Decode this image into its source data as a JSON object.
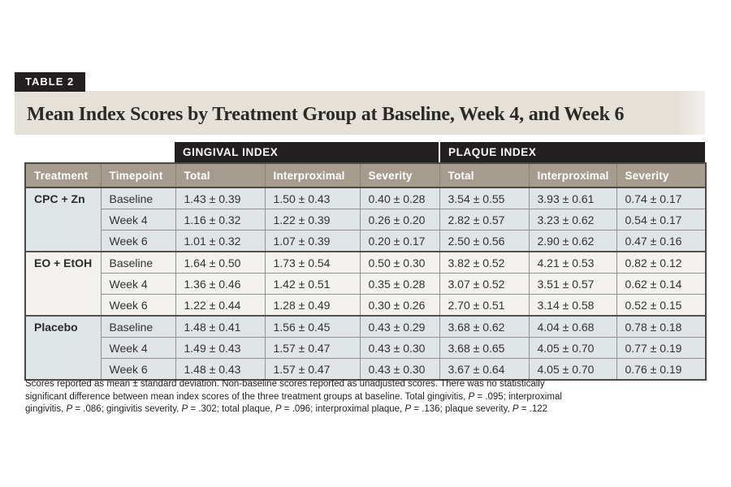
{
  "table_label": "TABLE 2",
  "title": "Mean Index Scores by Treatment Group at Baseline, Week 4, and Week 6",
  "colors": {
    "badge_black": "#231f20",
    "title_band_beige": "#e5e0d8",
    "header_taupe": "#a69c8e",
    "row_gray": "#dfe4e7",
    "row_light": "#f3f1ed",
    "border_dark": "#4c4847",
    "border_mid": "#919191"
  },
  "table": {
    "group_headers": [
      {
        "label": "GINGIVAL INDEX"
      },
      {
        "label": "PLAQUE INDEX"
      }
    ],
    "columns": [
      "Treatment",
      "Timepoint",
      "Total",
      "Interproximal",
      "Severity",
      "Total",
      "Interproximal",
      "Severity"
    ],
    "groups": [
      {
        "treatment": "CPC + Zn",
        "shade": "gray",
        "rows": [
          {
            "timepoint": "Baseline",
            "values": [
              "1.43 ± 0.39",
              "1.50 ± 0.43",
              "0.40 ± 0.28",
              "3.54 ± 0.55",
              "3.93 ± 0.61",
              "0.74 ± 0.17"
            ]
          },
          {
            "timepoint": "Week 4",
            "values": [
              "1.16 ± 0.32",
              "1.22 ± 0.39",
              "0.26 ± 0.20",
              "2.82 ± 0.57",
              "3.23 ± 0.62",
              "0.54 ± 0.17"
            ]
          },
          {
            "timepoint": "Week 6",
            "values": [
              "1.01 ± 0.32",
              "1.07 ± 0.39",
              "0.20 ± 0.17",
              "2.50 ± 0.56",
              "2.90 ± 0.62",
              "0.47 ± 0.16"
            ]
          }
        ]
      },
      {
        "treatment": "EO + EtOH",
        "shade": "light",
        "rows": [
          {
            "timepoint": "Baseline",
            "values": [
              "1.64 ± 0.50",
              "1.73 ± 0.54",
              "0.50 ± 0.30",
              "3.82 ± 0.52",
              "4.21 ± 0.53",
              "0.82 ± 0.12"
            ]
          },
          {
            "timepoint": "Week 4",
            "values": [
              "1.36 ± 0.46",
              "1.42 ± 0.51",
              "0.35 ± 0.28",
              "3.07 ± 0.52",
              "3.51 ± 0.57",
              "0.62 ± 0.14"
            ]
          },
          {
            "timepoint": "Week 6",
            "values": [
              "1.22 ± 0.44",
              "1.28 ± 0.49",
              "0.30 ± 0.26",
              "2.70 ± 0.51",
              "3.14 ± 0.58",
              "0.52 ± 0.15"
            ]
          }
        ]
      },
      {
        "treatment": "Placebo",
        "shade": "gray",
        "rows": [
          {
            "timepoint": "Baseline",
            "values": [
              "1.48 ± 0.41",
              "1.56 ± 0.45",
              "0.43 ± 0.29",
              "3.68 ± 0.62",
              "4.04 ± 0.68",
              "0.78 ± 0.18"
            ]
          },
          {
            "timepoint": "Week 4",
            "values": [
              "1.49 ± 0.43",
              "1.57 ± 0.47",
              "0.43 ± 0.30",
              "3.68 ± 0.65",
              "4.05 ± 0.70",
              "0.77 ± 0.19"
            ]
          },
          {
            "timepoint": "Week 6",
            "values": [
              "1.48 ± 0.43",
              "1.57 ± 0.47",
              "0.43 ± 0.30",
              "3.67 ± 0.64",
              "4.05 ± 0.70",
              "0.76 ± 0.19"
            ]
          }
        ]
      }
    ]
  },
  "footnote": {
    "lines": [
      [
        {
          "t": "Scores reported as mean ± standard deviation. Non-baseline scores reported as unadjusted scores. There was no statistically"
        }
      ],
      [
        {
          "t": "significant difference between mean index scores of the three treatment groups at baseline. Total gingivitis, "
        },
        {
          "t": "P",
          "i": true
        },
        {
          "t": " = .095; interproximal"
        }
      ],
      [
        {
          "t": "gingivitis, "
        },
        {
          "t": "P",
          "i": true
        },
        {
          "t": " = .086; gingivitis severity, "
        },
        {
          "t": "P",
          "i": true
        },
        {
          "t": " = .302; total plaque, "
        },
        {
          "t": "P",
          "i": true
        },
        {
          "t": " = .096; interproximal plaque, "
        },
        {
          "t": "P",
          "i": true
        },
        {
          "t": " = .136; plaque severity, "
        },
        {
          "t": "P",
          "i": true
        },
        {
          "t": " = .122"
        }
      ]
    ]
  }
}
